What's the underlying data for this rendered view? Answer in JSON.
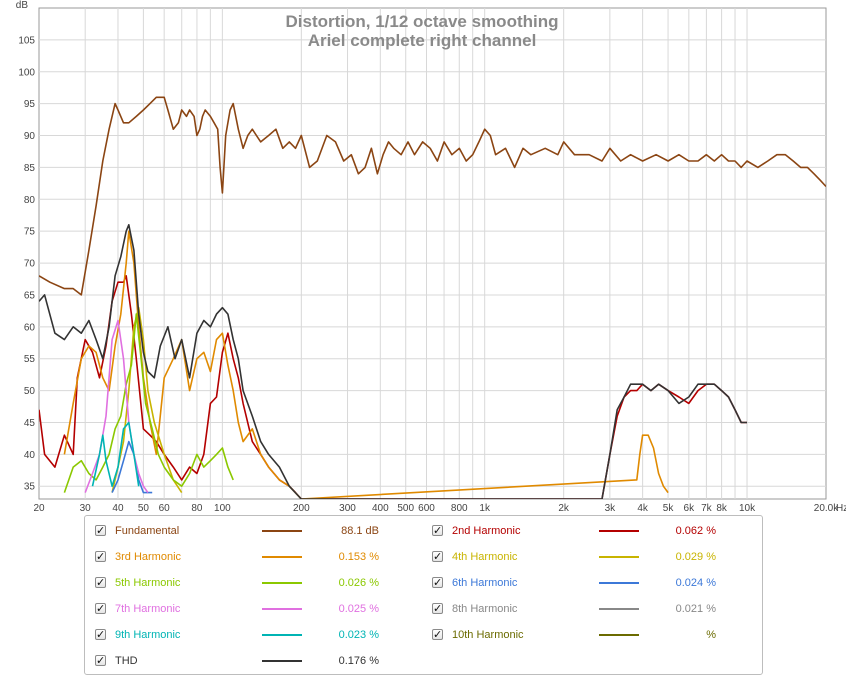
{
  "chart_data": {
    "type": "line",
    "title": "Distortion, 1/12 octave smoothing",
    "subtitle": "Ariel complete right channel",
    "ylabel": "dB",
    "xlabel": "Hz",
    "x_scale": "log",
    "xlim": [
      20,
      20000
    ],
    "ylim": [
      33,
      110
    ],
    "grid": true,
    "x_ticks": [
      20,
      30,
      40,
      50,
      60,
      80,
      100,
      200,
      300,
      400,
      500,
      600,
      800,
      1000,
      2000,
      3000,
      4000,
      5000,
      6000,
      7000,
      8000,
      10000,
      20000
    ],
    "x_tick_labels": [
      "20",
      "30",
      "40",
      "50",
      "60",
      "80",
      "100",
      "200",
      "300",
      "400",
      "500",
      "600",
      "800",
      "1k",
      "2k",
      "3k",
      "4k",
      "5k",
      "6k",
      "7k",
      "8k",
      "10k",
      "20.0k"
    ],
    "y_ticks": [
      35,
      40,
      45,
      50,
      55,
      60,
      65,
      70,
      75,
      80,
      85,
      90,
      95,
      100,
      105
    ],
    "series": [
      {
        "name": "Fundamental",
        "color": "#8b4513",
        "x": [
          20,
          22,
          25,
          27,
          29,
          31,
          33,
          35,
          37,
          39,
          40,
          42,
          44,
          47,
          50,
          53,
          56,
          60,
          62,
          65,
          68,
          70,
          73,
          75,
          78,
          80,
          82,
          84,
          86,
          90,
          93,
          96,
          98,
          100,
          103,
          107,
          110,
          115,
          120,
          125,
          130,
          140,
          150,
          160,
          170,
          180,
          190,
          200,
          215,
          230,
          250,
          270,
          290,
          310,
          330,
          350,
          370,
          390,
          410,
          430,
          450,
          480,
          510,
          540,
          580,
          620,
          660,
          700,
          750,
          800,
          850,
          900,
          950,
          1000,
          1050,
          1100,
          1200,
          1300,
          1400,
          1500,
          1700,
          1900,
          2000,
          2200,
          2500,
          2800,
          3000,
          3300,
          3600,
          4000,
          4500,
          5000,
          5500,
          6000,
          6500,
          7000,
          7500,
          8000,
          8500,
          9000,
          9500,
          10000,
          11000,
          12000,
          13000,
          14000,
          15000,
          16000,
          17000,
          18000,
          19000,
          20000
        ],
        "values": [
          68,
          67,
          66,
          66,
          65,
          72,
          79,
          86,
          91,
          95,
          94,
          92,
          92,
          93,
          94,
          95,
          96,
          96,
          94,
          91,
          92,
          94,
          93,
          94,
          93,
          90,
          91,
          93,
          94,
          93,
          92,
          91,
          85,
          81,
          90,
          94,
          95,
          91,
          88,
          90,
          91,
          89,
          90,
          91,
          88,
          89,
          88,
          90,
          85,
          86,
          90,
          89,
          86,
          87,
          84,
          85,
          88,
          84,
          87,
          89,
          88,
          87,
          89,
          87,
          89,
          88,
          86,
          89,
          87,
          88,
          86,
          87,
          89,
          91,
          90,
          87,
          88,
          85,
          88,
          87,
          88,
          87,
          89,
          87,
          87,
          86,
          88,
          86,
          87,
          86,
          87,
          86,
          87,
          86,
          86,
          87,
          86,
          87,
          86,
          86,
          85,
          86,
          85,
          86,
          87,
          87,
          86,
          85,
          85,
          84,
          83,
          82
        ]
      },
      {
        "name": "2nd Harmonic",
        "color": "#b40000",
        "x": [
          20,
          21,
          23,
          25,
          27,
          28,
          30,
          32,
          34,
          36,
          38,
          40,
          42,
          43,
          45,
          47,
          50,
          53,
          56,
          60,
          65,
          70,
          75,
          80,
          85,
          90,
          95,
          100,
          105,
          110,
          115,
          120,
          130,
          140,
          150,
          165,
          180,
          190,
          200,
          2800,
          3000,
          3200,
          3400,
          3600,
          3800,
          4000,
          4300,
          4600,
          5000,
          5500,
          6000,
          6500,
          7000,
          7500,
          8000,
          8500,
          9000,
          9500,
          10000
        ],
        "values": [
          47,
          40,
          38,
          43,
          40,
          52,
          58,
          56,
          52,
          57,
          64,
          67,
          67,
          68,
          62,
          55,
          44,
          43,
          42,
          40,
          38,
          36,
          38,
          37,
          40,
          48,
          49,
          56,
          59,
          55,
          52,
          48,
          42,
          40,
          38,
          36,
          35,
          34,
          33,
          33,
          40,
          46,
          49,
          50,
          50,
          51,
          50,
          51,
          50,
          49,
          48,
          50,
          51,
          51,
          50,
          49,
          47,
          45,
          45
        ]
      },
      {
        "name": "3rd Harmonic",
        "color": "#e08a00",
        "x": [
          25,
          27,
          29,
          31,
          33,
          35,
          37,
          39,
          41,
          43,
          44,
          46,
          48,
          50,
          53,
          56,
          60,
          65,
          70,
          75,
          80,
          85,
          90,
          95,
          100,
          105,
          110,
          115,
          120,
          130,
          140,
          150,
          165,
          180,
          200,
          3800,
          3900,
          4000,
          4200,
          4400,
          4600,
          4800,
          5000
        ],
        "values": [
          40,
          48,
          55,
          57,
          56,
          52,
          50,
          57,
          62,
          70,
          75,
          70,
          60,
          52,
          45,
          40,
          52,
          55,
          58,
          50,
          55,
          56,
          53,
          58,
          59,
          54,
          50,
          45,
          42,
          44,
          40,
          38,
          36,
          35,
          33,
          36,
          40,
          43,
          43,
          41,
          37,
          35,
          34
        ]
      },
      {
        "name": "4th Harmonic",
        "color": "#c8b400",
        "x": [
          38,
          40,
          42,
          44,
          46,
          48,
          50,
          52,
          55,
          60,
          65,
          70
        ],
        "values": [
          34,
          38,
          42,
          50,
          60,
          63,
          58,
          50,
          45,
          40,
          36,
          34
        ]
      },
      {
        "name": "5th Harmonic",
        "color": "#8bc800",
        "x": [
          25,
          27,
          29,
          31,
          33,
          35,
          37,
          39,
          41,
          43,
          45,
          47,
          49,
          51,
          54,
          57,
          60,
          65,
          70,
          75,
          80,
          85,
          90,
          95,
          100,
          105,
          110
        ],
        "values": [
          34,
          38,
          39,
          37,
          36,
          38,
          40,
          44,
          46,
          51,
          54,
          62,
          55,
          48,
          44,
          40,
          38,
          36,
          35,
          37,
          40,
          38,
          39,
          40,
          41,
          38,
          36
        ]
      },
      {
        "name": "6th Harmonic",
        "color": "#3c78d8",
        "x": [
          38,
          40,
          42,
          44,
          46,
          48,
          50,
          52,
          54
        ],
        "values": [
          34,
          36,
          39,
          42,
          40,
          36,
          34,
          34,
          34
        ]
      },
      {
        "name": "7th Harmonic",
        "color": "#e070e0",
        "x": [
          30,
          32,
          34,
          36,
          38,
          40,
          42,
          44,
          46,
          48,
          50,
          52
        ],
        "values": [
          34,
          37,
          40,
          46,
          58,
          61,
          55,
          45,
          40,
          37,
          35,
          34
        ]
      },
      {
        "name": "8th Harmonic",
        "color": "#888888",
        "x": [],
        "values": []
      },
      {
        "name": "9th Harmonic",
        "color": "#00b4b4",
        "x": [
          32,
          34,
          35,
          36,
          38,
          40,
          42,
          44,
          46,
          48
        ],
        "values": [
          35,
          40,
          43,
          39,
          35,
          38,
          44,
          45,
          40,
          35
        ]
      },
      {
        "name": "10th Harmonic",
        "color": "#6b6b00",
        "x": [],
        "values": []
      },
      {
        "name": "THD",
        "color": "#333333",
        "x": [
          20,
          21,
          23,
          25,
          27,
          29,
          31,
          33,
          35,
          37,
          39,
          41,
          43,
          44,
          46,
          48,
          50,
          52,
          55,
          58,
          62,
          66,
          70,
          75,
          80,
          85,
          90,
          95,
          100,
          105,
          110,
          115,
          120,
          130,
          140,
          150,
          165,
          180,
          200,
          2800,
          3000,
          3200,
          3400,
          3600,
          3800,
          4000,
          4300,
          4600,
          5000,
          5500,
          6000,
          6500,
          7000,
          7500,
          8000,
          8500,
          9000,
          9500,
          10000
        ],
        "values": [
          64,
          65,
          59,
          58,
          60,
          59,
          61,
          58,
          55,
          60,
          68,
          71,
          75,
          76,
          72,
          62,
          56,
          53,
          52,
          57,
          60,
          55,
          58,
          52,
          59,
          61,
          60,
          62,
          63,
          62,
          58,
          55,
          50,
          46,
          42,
          40,
          38,
          35,
          33,
          33,
          40,
          47,
          49,
          51,
          51,
          51,
          50,
          51,
          50,
          48,
          49,
          51,
          51,
          51,
          50,
          49,
          47,
          45,
          45
        ]
      }
    ]
  },
  "legend": {
    "items": [
      {
        "label": "Fundamental",
        "value": "88.1 dB",
        "color": "#8b4513"
      },
      {
        "label": "2nd Harmonic",
        "value": "0.062 %",
        "color": "#b40000"
      },
      {
        "label": "3rd Harmonic",
        "value": "0.153 %",
        "color": "#e08a00"
      },
      {
        "label": "4th Harmonic",
        "value": "0.029 %",
        "color": "#c8b400"
      },
      {
        "label": "5th Harmonic",
        "value": "0.026 %",
        "color": "#8bc800"
      },
      {
        "label": "6th Harmonic",
        "value": "0.024 %",
        "color": "#3c78d8"
      },
      {
        "label": "7th Harmonic",
        "value": "0.025 %",
        "color": "#e070e0"
      },
      {
        "label": "8th Harmonic",
        "value": "0.021 %",
        "color": "#888888"
      },
      {
        "label": "9th Harmonic",
        "value": "0.023 %",
        "color": "#00b4b4"
      },
      {
        "label": "10th Harmonic",
        "value": "%",
        "color": "#6b6b00"
      },
      {
        "label": "THD",
        "value": "0.176 %",
        "color": "#333333"
      }
    ]
  }
}
